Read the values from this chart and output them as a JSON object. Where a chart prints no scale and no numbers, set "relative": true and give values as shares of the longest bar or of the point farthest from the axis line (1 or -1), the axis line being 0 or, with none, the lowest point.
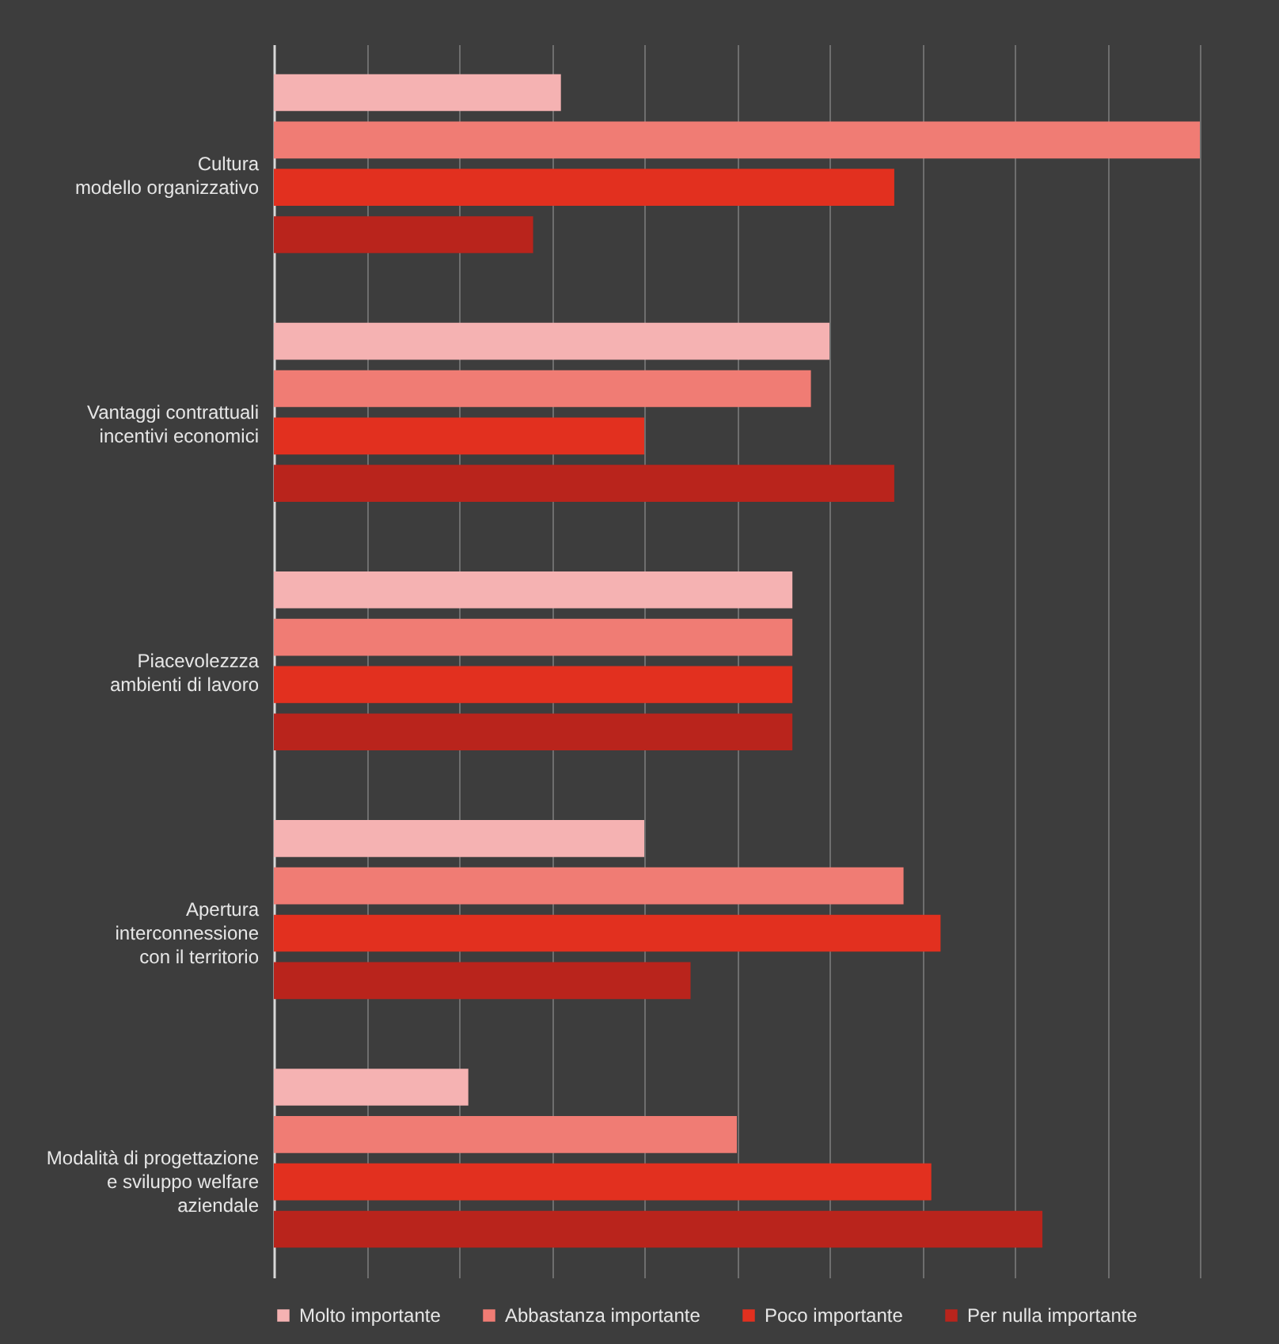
{
  "chart_data": {
    "type": "bar",
    "orientation": "horizontal",
    "relative": true,
    "grid": "x",
    "legend": "bottom",
    "categories": [
      "Cultura\nmodello organizzativo",
      "Vantaggi contrattuali\nincentivi economici",
      "Piacevolezzza\nambienti di lavoro",
      "Apertura\ninterconnessione\ncon il territorio",
      "Modalità di progettazione\ne sviluppo welfare\naziendale"
    ],
    "series": [
      {
        "name": "Molto importante",
        "color": "#f5b2b2",
        "values": [
          0.31,
          0.6,
          0.56,
          0.4,
          0.21
        ]
      },
      {
        "name": "Abbastanza importante",
        "color": "#f07c74",
        "values": [
          1,
          0.58,
          0.56,
          0.68,
          0.5
        ]
      },
      {
        "name": "Poco importante",
        "color": "#e2301f",
        "values": [
          0.67,
          0.4,
          0.56,
          0.72,
          0.71
        ]
      },
      {
        "name": "Per nulla importante",
        "color": "#b9241c",
        "values": [
          0.28,
          0.67,
          0.56,
          0.45,
          0.83
        ]
      }
    ]
  }
}
